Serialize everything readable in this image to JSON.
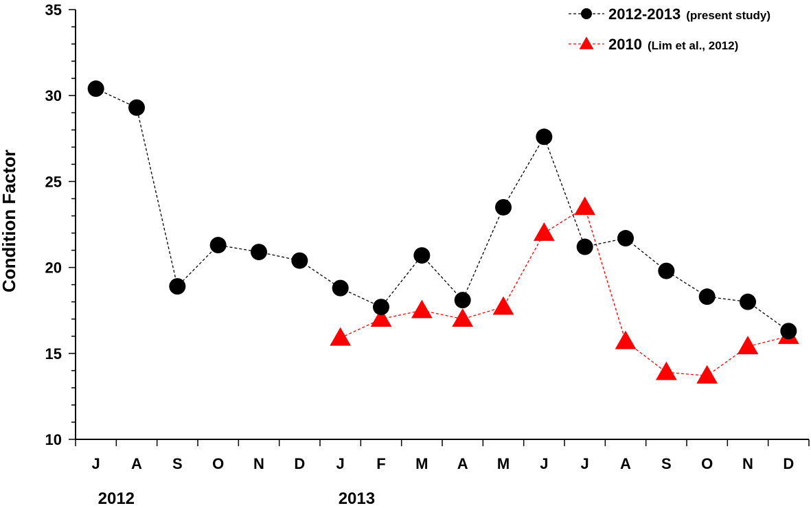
{
  "chart_data": {
    "type": "line",
    "ylabel": "Condition Factor",
    "ylim": [
      10,
      35
    ],
    "yticks": [
      10,
      15,
      20,
      25,
      30,
      35
    ],
    "categories": [
      "J",
      "A",
      "S",
      "O",
      "N",
      "D",
      "J",
      "F",
      "M",
      "A",
      "M",
      "J",
      "J",
      "A",
      "S",
      "O",
      "N",
      "D"
    ],
    "year_labels": [
      {
        "label": "2012",
        "category_index": 0.5
      },
      {
        "label": "2013",
        "category_index": 6.4
      }
    ],
    "grid": false,
    "legend_position": "top-right",
    "series": [
      {
        "name": "2012-2013",
        "name_note": "(present study)",
        "marker": "circle",
        "color": "#000000",
        "values": [
          30.4,
          29.3,
          18.9,
          21.3,
          20.9,
          20.4,
          18.8,
          17.7,
          20.7,
          18.1,
          23.5,
          27.6,
          21.2,
          21.7,
          19.8,
          18.3,
          18.0,
          16.3
        ]
      },
      {
        "name": "2010",
        "name_note": "(Lim et al., 2012)",
        "marker": "triangle",
        "color": "#ff0000",
        "values": [
          null,
          null,
          null,
          null,
          null,
          null,
          15.9,
          17.0,
          17.5,
          17.0,
          17.7,
          22.0,
          23.5,
          15.7,
          13.9,
          13.7,
          15.4,
          16.0
        ]
      }
    ]
  }
}
